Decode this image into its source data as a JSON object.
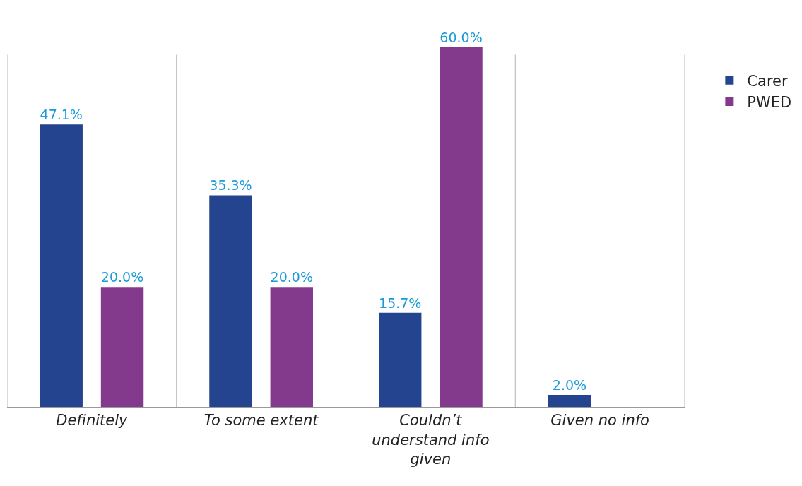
{
  "chart_data": {
    "type": "bar",
    "categories": [
      "Definitely",
      "To some extent",
      "Couldn’t understand info given",
      "Given no info"
    ],
    "series": [
      {
        "name": "Carer",
        "color": "#24448f",
        "values": [
          47.1,
          35.3,
          15.7,
          2.0
        ],
        "value_labels": [
          "47.1%",
          "35.3%",
          "15.7%",
          "2.0%"
        ]
      },
      {
        "name": "PWED",
        "color": "#843a8c",
        "values": [
          20.0,
          20.0,
          60.0,
          null
        ],
        "value_labels": [
          "20.0%",
          "20.0%",
          "60.0%",
          null
        ]
      }
    ],
    "grid": "x",
    "legend": "right",
    "tick_labels": "x"
  }
}
